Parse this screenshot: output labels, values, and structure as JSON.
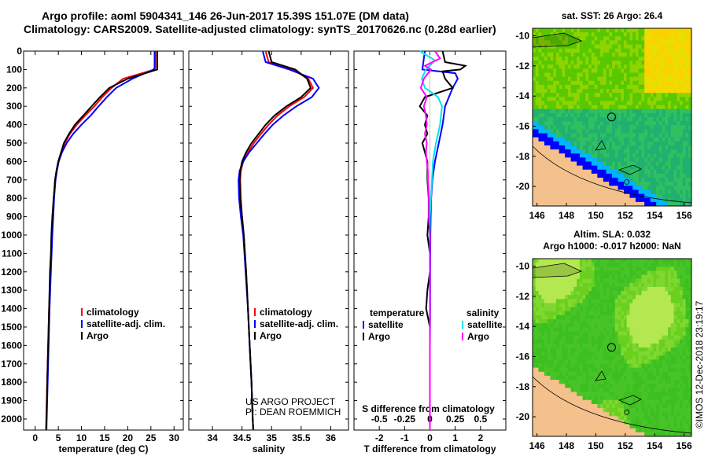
{
  "header": {
    "line1": "Argo profile: aoml 5904341_146 26-Jun-2017 15.39S 151.07E (DM data)",
    "line2": "Climatology: CARS2009. Satellite-adjusted climatology: synTS_20170626.nc (0.28d earlier)"
  },
  "depth_axis": {
    "ticks": [
      0,
      100,
      200,
      300,
      400,
      500,
      600,
      700,
      800,
      900,
      1000,
      1100,
      1200,
      1300,
      1400,
      1500,
      1600,
      1700,
      1800,
      1900,
      2000
    ],
    "range": [
      0,
      2060
    ]
  },
  "colors": {
    "climatology": "#ff0000",
    "satellite": "#0000ff",
    "argo": "#000000",
    "salinity_satellite": "#00e5ee",
    "salinity_argo": "#ff00ff",
    "land": "#f4c08c"
  },
  "chart_data": [
    {
      "type": "line",
      "title": "",
      "xlabel": "temperature (deg C)",
      "ylabel": "",
      "xlim": [
        -2.5,
        32
      ],
      "ylim": [
        2060,
        0
      ],
      "xticks": [
        0,
        5,
        10,
        15,
        20,
        25,
        30
      ],
      "legend": [
        "climatology",
        "satellite-adj. clim.",
        "Argo"
      ],
      "series": [
        {
          "name": "climatology",
          "color": "#ff0000",
          "depth": [
            0,
            90,
            100,
            150,
            200,
            250,
            300,
            350,
            400,
            450,
            500,
            550,
            600,
            650,
            700,
            800,
            900,
            1000,
            1200,
            1400,
            1600,
            1800,
            2000,
            2060
          ],
          "values": [
            26.0,
            26.0,
            25.8,
            19.0,
            16.5,
            14.5,
            12.8,
            10.8,
            9.0,
            7.5,
            6.4,
            5.6,
            5.0,
            4.6,
            4.3,
            4.0,
            3.8,
            3.6,
            3.3,
            3.0,
            2.8,
            2.6,
            2.4,
            2.35
          ]
        },
        {
          "name": "satellite-adj. clim.",
          "color": "#0000ff",
          "depth": [
            0,
            90,
            100,
            150,
            200,
            250,
            300,
            350,
            400,
            450,
            500,
            550,
            600,
            650,
            700,
            800,
            900,
            1000,
            1200,
            1400,
            1600,
            1800,
            2000,
            2060
          ],
          "values": [
            25.8,
            25.8,
            25.6,
            21.0,
            17.5,
            15.5,
            13.7,
            12.0,
            10.0,
            8.2,
            6.8,
            5.8,
            5.1,
            4.7,
            4.4,
            4.1,
            3.9,
            3.7,
            3.4,
            3.1,
            2.9,
            2.7,
            2.5,
            2.45
          ]
        },
        {
          "name": "Argo",
          "color": "#000000",
          "depth": [
            0,
            100,
            150,
            200,
            250,
            300,
            350,
            400,
            450,
            500,
            550,
            600,
            650,
            700,
            800,
            900,
            1000,
            1100,
            1200,
            1400,
            1600,
            1800,
            2000,
            2060
          ],
          "values": [
            26.4,
            26.4,
            20.0,
            16.0,
            14.0,
            12.2,
            10.4,
            8.6,
            7.3,
            6.2,
            5.6,
            5.0,
            4.6,
            4.3,
            4.0,
            3.7,
            3.5,
            3.4,
            3.2,
            3.0,
            2.8,
            2.6,
            2.45,
            2.4
          ]
        }
      ]
    },
    {
      "type": "line",
      "title": "",
      "xlabel": "salinity",
      "ylabel": "",
      "xlim": [
        33.6,
        36.3
      ],
      "ylim": [
        2060,
        0
      ],
      "xticks": [
        34,
        34.5,
        35,
        35.5,
        36
      ],
      "legend": [
        "climatology",
        "satellite-adj. clim.",
        "Argo"
      ],
      "annotations": [
        "US ARGO PROJECT",
        "PI: DEAN ROEMMICH"
      ],
      "series": [
        {
          "name": "climatology",
          "color": "#ff0000",
          "depth": [
            0,
            60,
            100,
            150,
            200,
            250,
            300,
            350,
            400,
            450,
            500,
            550,
            600,
            650,
            700,
            800,
            900,
            1000,
            1200,
            1400,
            1600,
            1800,
            2000,
            2060
          ],
          "values": [
            34.9,
            34.95,
            35.35,
            35.62,
            35.7,
            35.55,
            35.3,
            35.1,
            34.95,
            34.82,
            34.7,
            34.6,
            34.52,
            34.48,
            34.47,
            34.48,
            34.5,
            34.53,
            34.57,
            34.6,
            34.63,
            34.66,
            34.68,
            34.69
          ]
        },
        {
          "name": "satellite-adj. clim.",
          "color": "#0000ff",
          "depth": [
            0,
            60,
            100,
            150,
            200,
            250,
            300,
            350,
            400,
            450,
            500,
            550,
            600,
            650,
            700,
            800,
            900,
            1000,
            1200,
            1400,
            1600,
            1800,
            2000,
            2060
          ],
          "values": [
            34.85,
            34.9,
            35.3,
            35.7,
            35.8,
            35.68,
            35.42,
            35.2,
            35.02,
            34.88,
            34.75,
            34.62,
            34.52,
            34.46,
            34.44,
            34.45,
            34.48,
            34.52,
            34.56,
            34.6,
            34.63,
            34.66,
            34.68,
            34.69
          ]
        },
        {
          "name": "Argo",
          "color": "#000000",
          "depth": [
            0,
            60,
            100,
            150,
            200,
            250,
            300,
            350,
            400,
            450,
            500,
            550,
            600,
            650,
            700,
            800,
            900,
            1000,
            1200,
            1400,
            1600,
            1800,
            2000,
            2060
          ],
          "values": [
            34.95,
            35.0,
            35.4,
            35.6,
            35.66,
            35.5,
            35.25,
            35.05,
            34.9,
            34.78,
            34.66,
            34.57,
            34.5,
            34.47,
            34.46,
            34.47,
            34.5,
            34.53,
            34.57,
            34.6,
            34.63,
            34.66,
            34.68,
            34.69
          ]
        }
      ]
    },
    {
      "type": "line",
      "title": "S difference from climatology",
      "xlabel": "T difference from climatology",
      "ylabel": "",
      "xlim": [
        -3,
        3
      ],
      "ylim": [
        2060,
        0
      ],
      "xticks": [
        -2,
        -1,
        0,
        1,
        2
      ],
      "top_axis_label": "S difference from climatology",
      "top_ticks": [
        -0.5,
        -0.25,
        0,
        0.25,
        0.5
      ],
      "top_tick_labels": [
        "-0.5",
        "-0.25",
        "0",
        "0.25",
        "0.5"
      ],
      "legend_left_title": "temperature",
      "legend_right_title": "salinity",
      "legend": [
        "satellite",
        "Argo",
        "satellite",
        "Argo"
      ],
      "series": [
        {
          "name": "T satellite",
          "color": "#0000ff",
          "depth": [
            0,
            100,
            120,
            150,
            200,
            300,
            400,
            500,
            600,
            700,
            800,
            900,
            1000,
            1200,
            1400,
            1600,
            1800,
            2000,
            2060
          ],
          "values": [
            -0.2,
            -0.3,
            1.0,
            1.1,
            0.9,
            0.6,
            0.5,
            0.35,
            0.2,
            0.1,
            0.05,
            0.03,
            0.02,
            0.01,
            0.01,
            0,
            0,
            0,
            0
          ]
        },
        {
          "name": "T Argo",
          "color": "#000000",
          "depth": [
            0,
            60,
            80,
            100,
            110,
            150,
            200,
            250,
            300,
            350,
            400,
            450,
            500,
            600,
            700,
            800,
            900,
            1000,
            1100,
            1200,
            1300,
            1400,
            1500,
            1600,
            1800,
            2000,
            2060
          ],
          "values": [
            0.5,
            0.6,
            1.4,
            1.2,
            0.5,
            0.6,
            0.9,
            -0.2,
            -0.4,
            -0.1,
            -0.2,
            -0.1,
            -0.3,
            -0.1,
            -0.1,
            -0.05,
            -0.05,
            -0.1,
            0,
            0,
            -0.1,
            -0.15,
            0,
            0,
            0,
            0,
            0
          ]
        },
        {
          "name": "S satellite",
          "color": "#00e5ee",
          "depth": [
            0,
            50,
            100,
            150,
            200,
            250,
            300,
            400,
            500,
            600,
            700,
            800,
            900,
            1000,
            1200,
            1400,
            1600,
            1800,
            2000,
            2060
          ],
          "values": [
            -0.1,
            0.05,
            -0.04,
            -0.08,
            -0.05,
            0.08,
            0.12,
            0.1,
            0.06,
            0.03,
            0.02,
            0.01,
            0,
            0,
            0,
            0,
            0,
            0,
            0,
            0
          ]
        },
        {
          "name": "S Argo",
          "color": "#ff00ff",
          "depth": [
            0,
            40,
            80,
            100,
            150,
            200,
            250,
            300,
            350,
            400,
            450,
            500,
            550,
            600,
            650,
            700,
            800,
            900,
            1000,
            1200,
            1400,
            1600,
            1800,
            2000,
            2060
          ],
          "values": [
            0.05,
            0.1,
            -0.05,
            0.01,
            -0.06,
            -0.09,
            -0.03,
            -0.06,
            -0.04,
            -0.03,
            -0.05,
            -0.03,
            -0.04,
            -0.03,
            -0.02,
            -0.02,
            -0.01,
            -0.01,
            0,
            0,
            0,
            0,
            0,
            0,
            0
          ]
        }
      ]
    },
    {
      "type": "heatmap",
      "title": "sat. SST: 26 Argo: 26.4",
      "xlim": [
        145.7,
        156.5
      ],
      "ylim": [
        -21.3,
        -9.5
      ],
      "xticks": [
        146,
        148,
        150,
        152,
        154,
        156
      ],
      "yticks": [
        -10,
        -12,
        -14,
        -16,
        -18,
        -20
      ],
      "float_position": [
        151.07,
        -15.39
      ]
    },
    {
      "type": "heatmap",
      "title_line1": "Altim. SLA: 0.032",
      "title_line2": "Argo h1000: -0.017 h2000: NaN",
      "xlim": [
        145.7,
        156.5
      ],
      "ylim": [
        -21.3,
        -9.5
      ],
      "xticks": [
        146,
        148,
        150,
        152,
        154,
        156
      ],
      "yticks": [
        -10,
        -12,
        -14,
        -16,
        -18,
        -20
      ],
      "float_position": [
        151.07,
        -15.39
      ]
    }
  ],
  "footer_stamp": "©IMOS 12-Dec-2018 23:19:17"
}
